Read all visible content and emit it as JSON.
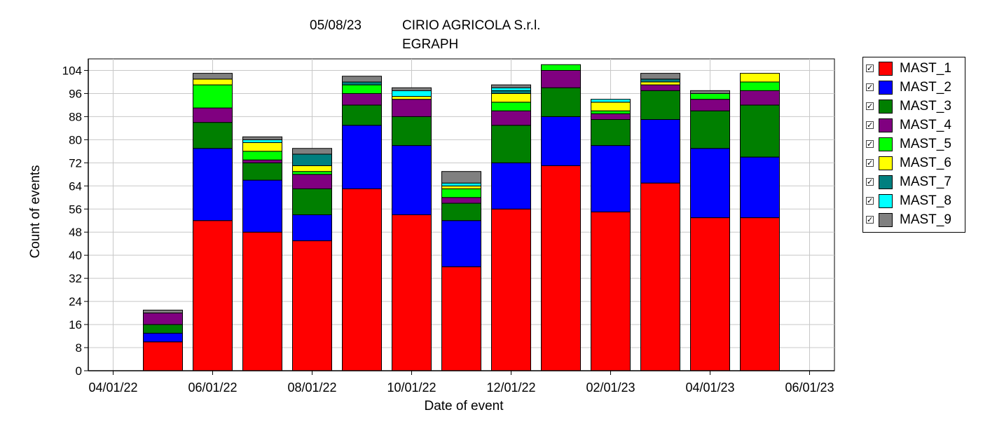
{
  "header": {
    "date": "05/08/23",
    "company": "CIRIO AGRICOLA S.r.l.",
    "subtitle": "EGRAPH"
  },
  "legend": {
    "check_glyph": "✓",
    "items": [
      {
        "label": "MAST_1",
        "color": "#ff0000"
      },
      {
        "label": "MAST_2",
        "color": "#0000ff"
      },
      {
        "label": "MAST_3",
        "color": "#007f00"
      },
      {
        "label": "MAST_4",
        "color": "#800080"
      },
      {
        "label": "MAST_5",
        "color": "#00ff00"
      },
      {
        "label": "MAST_6",
        "color": "#ffff00"
      },
      {
        "label": "MAST_7",
        "color": "#007f7f"
      },
      {
        "label": "MAST_8",
        "color": "#00ffff"
      },
      {
        "label": "MAST_9",
        "color": "#808080"
      }
    ]
  },
  "chart_data": {
    "type": "bar",
    "stacked": true,
    "title": "05/08/23 CIRIO AGRICOLA S.r.l. EGRAPH",
    "xlabel": "Date of event",
    "ylabel": "Count of events",
    "ylim": [
      0,
      108
    ],
    "yticks": [
      0,
      8,
      16,
      24,
      32,
      40,
      48,
      56,
      64,
      72,
      80,
      88,
      96,
      104
    ],
    "xtick_labels": [
      "04/01/22",
      "06/01/22",
      "08/01/22",
      "10/01/22",
      "12/01/22",
      "02/01/23",
      "04/01/23",
      "06/01/23"
    ],
    "grid": true,
    "categories": [
      "05/22",
      "06/22",
      "07/22",
      "08/22",
      "09/22",
      "10/22",
      "11/22",
      "12/22",
      "01/23",
      "02/23",
      "03/23",
      "04/23",
      "05/23"
    ],
    "series": [
      {
        "name": "MAST_1",
        "values": [
          10,
          52,
          48,
          45,
          63,
          54,
          36,
          56,
          71,
          55,
          65,
          53,
          53
        ]
      },
      {
        "name": "MAST_2",
        "values": [
          3,
          25,
          18,
          9,
          22,
          24,
          16,
          16,
          17,
          23,
          22,
          24,
          21
        ]
      },
      {
        "name": "MAST_3",
        "values": [
          3,
          9,
          6,
          9,
          7,
          10,
          6,
          13,
          10,
          9,
          10,
          13,
          18
        ]
      },
      {
        "name": "MAST_4",
        "values": [
          4,
          5,
          1,
          5,
          4,
          6,
          2,
          5,
          6,
          2,
          2,
          4,
          5
        ]
      },
      {
        "name": "MAST_5",
        "values": [
          0,
          8,
          3,
          1,
          3,
          0,
          3,
          3,
          2,
          1,
          0,
          2,
          3
        ]
      },
      {
        "name": "MAST_6",
        "values": [
          0,
          2,
          3,
          2,
          0,
          1,
          1,
          3,
          0,
          3,
          1,
          0,
          3
        ]
      },
      {
        "name": "MAST_7",
        "values": [
          0,
          0,
          0,
          4,
          1,
          0,
          0,
          1,
          0,
          0,
          1,
          0,
          0
        ]
      },
      {
        "name": "MAST_8",
        "values": [
          0,
          0,
          1,
          0,
          0,
          2,
          1,
          1,
          0,
          1,
          0,
          0,
          0
        ]
      },
      {
        "name": "MAST_9",
        "values": [
          1,
          2,
          1,
          2,
          2,
          1,
          4,
          1,
          0,
          0,
          2,
          1,
          0
        ]
      }
    ]
  }
}
